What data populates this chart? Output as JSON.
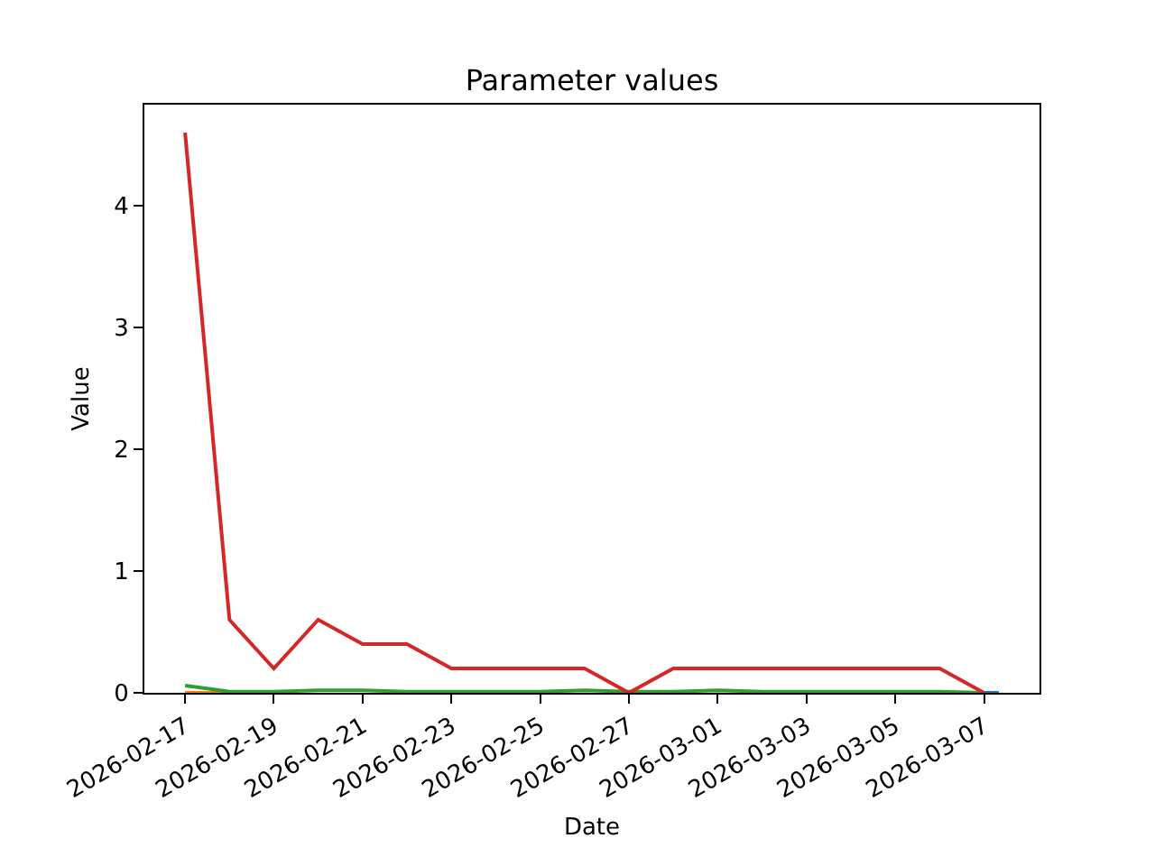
{
  "chart_data": {
    "type": "line",
    "title": "Parameter values",
    "xlabel": "Date",
    "ylabel": "Value",
    "x": [
      "2026-02-17",
      "2026-02-18",
      "2026-02-19",
      "2026-02-20",
      "2026-02-21",
      "2026-02-22",
      "2026-02-23",
      "2026-02-24",
      "2026-02-25",
      "2026-02-26",
      "2026-02-27",
      "2026-02-28",
      "2026-03-01",
      "2026-03-02",
      "2026-03-03",
      "2026-03-04",
      "2026-03-05",
      "2026-03-06",
      "2026-03-07"
    ],
    "series": [
      {
        "color": "#1f77b4",
        "x": [
          "2026-03-07",
          "2026-03-07T08:00"
        ],
        "values": [
          0,
          0
        ]
      },
      {
        "color": "#ff7f0e",
        "values": [
          0,
          0,
          null,
          null,
          null,
          null,
          null,
          null,
          null,
          null,
          null,
          null,
          null,
          null,
          null,
          null,
          null,
          null,
          null
        ]
      },
      {
        "color": "#2ca02c",
        "values": [
          0.06,
          0.01,
          0.01,
          0.02,
          0.02,
          0.01,
          0.01,
          0.01,
          0.01,
          0.02,
          0.01,
          0.01,
          0.02,
          0.01,
          0.01,
          0.01,
          0.01,
          0.01,
          0
        ]
      },
      {
        "color": "#d62728",
        "values": [
          4.6,
          0.6,
          0.2,
          0.6,
          0.4,
          0.4,
          0.2,
          0.2,
          0.2,
          0.2,
          0,
          0.2,
          0.2,
          0.2,
          0.2,
          0.2,
          0.2,
          0.2,
          0
        ]
      }
    ],
    "xlim": [
      "2026-02-16T02:00",
      "2026-03-08T06:00"
    ],
    "xticks": [
      "2026-02-17",
      "2026-02-19",
      "2026-02-21",
      "2026-02-23",
      "2026-02-25",
      "2026-02-27",
      "2026-03-01",
      "2026-03-03",
      "2026-03-05",
      "2026-03-07"
    ],
    "ylim": [
      0,
      4.83
    ],
    "yticks": [
      0,
      1,
      2,
      3,
      4
    ],
    "marker": "none",
    "line_style": "solid"
  }
}
